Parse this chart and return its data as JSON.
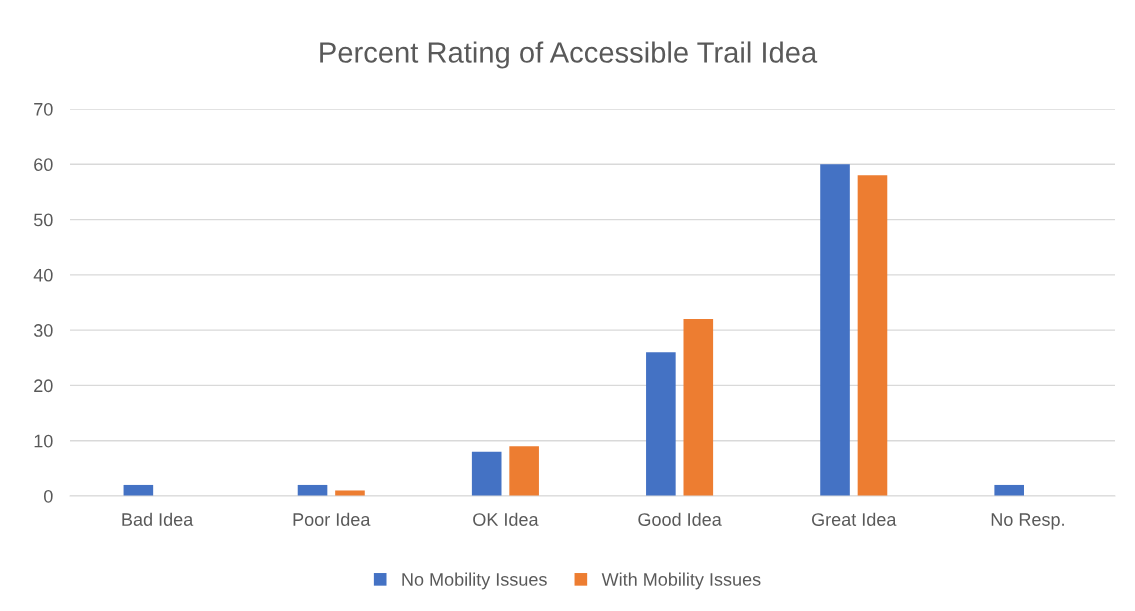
{
  "chart_data": {
    "type": "bar",
    "title": "Percent Rating of Accessible Trail Idea",
    "categories": [
      "Bad Idea",
      "Poor Idea",
      "OK Idea",
      "Good Idea",
      "Great Idea",
      "No Resp."
    ],
    "series": [
      {
        "name": "No Mobility Issues",
        "color": "#4472c4",
        "values": [
          2,
          2,
          8,
          26,
          60,
          2
        ]
      },
      {
        "name": "With Mobility Issues",
        "color": "#ed7d31",
        "values": [
          0,
          1,
          9,
          32,
          58,
          0
        ]
      }
    ],
    "ylim": [
      0,
      70
    ],
    "yticks": [
      0,
      10,
      20,
      30,
      40,
      50,
      60,
      70
    ],
    "grid": "y",
    "legend": "bottom"
  }
}
